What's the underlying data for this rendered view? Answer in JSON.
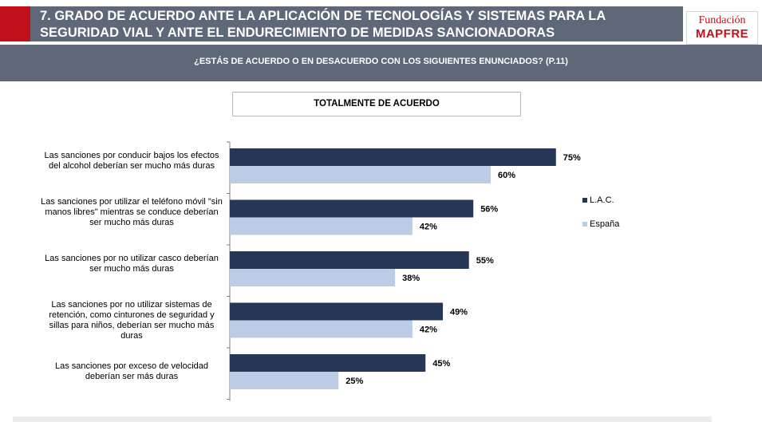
{
  "header": {
    "title_line1": "7. GRADO DE ACUERDO ANTE LA APLICACIÓN DE TECNOLOGÍAS Y SISTEMAS PARA LA",
    "title_line2": "SEGURIDAD VIAL Y ANTE EL ENDURECIMIENTO DE MEDIDAS SANCIONADORAS",
    "logo_top": "Fundación",
    "logo_bottom": "MAPFRE"
  },
  "subtitle": "¿ESTÁS DE ACUERDO O EN DESACUERDO CON LOS SIGUIENTES ENUNCIADOS? (P.11)",
  "colors": {
    "lac": "#263656",
    "espana": "#bccce4",
    "accent_red": "#c0111a",
    "bar_gray": "#5f6878"
  },
  "chart_data": {
    "type": "bar",
    "orientation": "horizontal",
    "title": "TOTALMENTE DE ACUERDO",
    "categories": [
      "Las sanciones por conducir bajos los efectos del alcohol deberían ser mucho más duras",
      "Las sanciones por utilizar el teléfono móvil \"sin manos libres\" mientras se conduce deberían ser mucho más duras",
      "Las sanciones por no utilizar casco deberían ser mucho más duras",
      "Las sanciones por no utilizar sistemas de retención, como cinturones de seguridad y sillas para niños, deberían ser mucho más duras",
      "Las sanciones por exceso de velocidad deberían ser más duras"
    ],
    "series": [
      {
        "name": "L.A.C.",
        "values": [
          75,
          56,
          55,
          49,
          45
        ],
        "labels": [
          "75%",
          "56%",
          "55%",
          "49%",
          "45%"
        ]
      },
      {
        "name": "España",
        "values": [
          60,
          42,
          38,
          42,
          25
        ],
        "labels": [
          "60%",
          "42%",
          "38%",
          "42%",
          "25%"
        ]
      }
    ],
    "xlim": [
      0,
      100
    ],
    "legend": "right",
    "grid": false
  }
}
